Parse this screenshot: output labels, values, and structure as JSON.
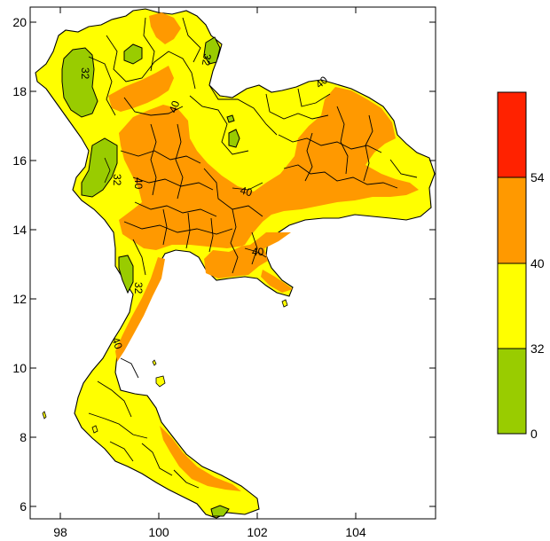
{
  "map": {
    "x_ticks": [
      "98",
      "100",
      "102",
      "104"
    ],
    "y_ticks": [
      "20",
      "18",
      "16",
      "14",
      "12",
      "10",
      "8",
      "6"
    ],
    "contour_labels": [
      "32",
      "32",
      "32",
      "40",
      "40",
      "40",
      "40",
      "40",
      "32",
      "40"
    ]
  },
  "colorbar": {
    "levels": [
      "0",
      "32",
      "40",
      "54"
    ],
    "bands": [
      {
        "range": "0-32",
        "color": "#99cc00"
      },
      {
        "range": "32-40",
        "color": "#ffff00"
      },
      {
        "range": "40-54",
        "color": "#ff9900"
      },
      {
        "range": "54+",
        "color": "#ff2200"
      }
    ]
  },
  "colors": {
    "green": "#99cc00",
    "yellow": "#ffff00",
    "orange": "#ff9900",
    "red": "#ff2200",
    "border": "#000000"
  }
}
